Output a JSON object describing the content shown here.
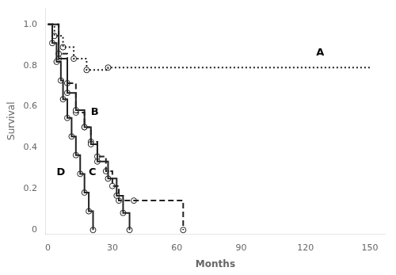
{
  "chart_data": {
    "type": "line",
    "title": "",
    "xlabel": "Months",
    "ylabel": "Survival",
    "xlim": [
      -1,
      157
    ],
    "ylim": [
      -0.02,
      1.08
    ],
    "xticks": [
      0,
      30,
      60,
      90,
      120,
      150
    ],
    "yticks": [
      0,
      0.2,
      0.4,
      0.6,
      0.8,
      {
        "value": 1.0,
        "label": "1.0"
      }
    ],
    "grid": false,
    "series": [
      {
        "name": "D",
        "line_style": "solid",
        "color": "#222222",
        "marker": "circle",
        "x": [
          0,
          2,
          2,
          4,
          4,
          6,
          6,
          7,
          7,
          9,
          9,
          11,
          11,
          13,
          13,
          15,
          15,
          17,
          17,
          19,
          19,
          21,
          21
        ],
        "values": [
          1.0,
          1.0,
          0.909,
          0.909,
          0.818,
          0.818,
          0.727,
          0.727,
          0.636,
          0.636,
          0.545,
          0.545,
          0.455,
          0.455,
          0.364,
          0.364,
          0.273,
          0.273,
          0.182,
          0.182,
          0.091,
          0.091,
          0.0
        ],
        "marker_x": [
          2,
          4,
          6,
          7,
          9,
          11,
          13,
          15,
          17,
          19,
          21
        ],
        "marker_y": [
          0.909,
          0.818,
          0.727,
          0.636,
          0.545,
          0.455,
          0.364,
          0.273,
          0.182,
          0.091,
          0.0
        ]
      },
      {
        "name": "C",
        "line_style": "solid",
        "color": "#222222",
        "marker": "circle",
        "x": [
          0,
          5,
          5,
          9,
          9,
          13,
          13,
          17,
          17,
          20,
          20,
          23,
          23,
          28,
          28,
          32,
          32,
          35,
          35,
          38,
          38
        ],
        "values": [
          1.0,
          1.0,
          0.833,
          0.833,
          0.667,
          0.667,
          0.583,
          0.583,
          0.5,
          0.5,
          0.417,
          0.417,
          0.333,
          0.333,
          0.25,
          0.25,
          0.167,
          0.167,
          0.083,
          0.083,
          0.0
        ],
        "marker_x": [
          5,
          9,
          13,
          17,
          20,
          23,
          28,
          32,
          35,
          38
        ],
        "marker_y": [
          0.833,
          0.667,
          0.583,
          0.5,
          0.417,
          0.333,
          0.25,
          0.167,
          0.083,
          0.0
        ]
      },
      {
        "name": "B",
        "line_style": "dashed",
        "color": "#222222",
        "marker": "circle",
        "x": [
          0,
          5,
          5,
          9,
          9,
          13,
          13,
          17,
          17,
          20,
          20,
          23,
          23,
          27,
          27,
          30,
          30,
          33,
          33,
          40,
          40,
          63,
          63
        ],
        "values": [
          1.0,
          1.0,
          0.857,
          0.857,
          0.714,
          0.714,
          0.571,
          0.571,
          0.5,
          0.5,
          0.429,
          0.429,
          0.357,
          0.357,
          0.286,
          0.286,
          0.214,
          0.214,
          0.143,
          0.143,
          0.143,
          0.143,
          0.0
        ],
        "marker_x": [
          5,
          9,
          13,
          17,
          20,
          23,
          27,
          30,
          33,
          40,
          63
        ],
        "marker_y": [
          0.857,
          0.714,
          0.571,
          0.5,
          0.429,
          0.357,
          0.286,
          0.214,
          0.143,
          0.143,
          0.0
        ]
      },
      {
        "name": "A",
        "line_style": "dotted",
        "color": "#222222",
        "marker": "circle",
        "x": [
          0,
          3,
          3,
          7,
          7,
          12,
          12,
          18,
          18,
          28,
          28,
          150
        ],
        "values": [
          1.0,
          1.0,
          0.944,
          0.944,
          0.889,
          0.889,
          0.833,
          0.833,
          0.778,
          0.778,
          0.79,
          0.79
        ],
        "marker_x": [
          3,
          7,
          12,
          18,
          28
        ],
        "marker_y": [
          0.944,
          0.889,
          0.833,
          0.778,
          0.79
        ]
      }
    ],
    "annotations": [
      {
        "text": "D",
        "x": 4,
        "y": 0.265
      },
      {
        "text": "C",
        "x": 19,
        "y": 0.265
      },
      {
        "text": "B",
        "x": 20,
        "y": 0.56
      },
      {
        "text": "A",
        "x": 125,
        "y": 0.85
      }
    ],
    "legend": false
  }
}
